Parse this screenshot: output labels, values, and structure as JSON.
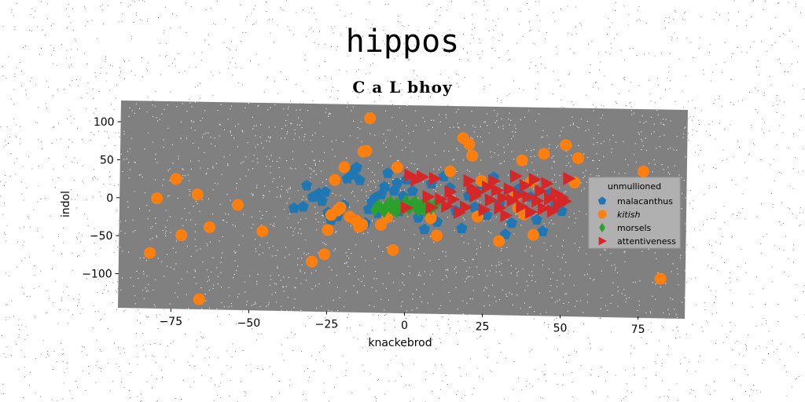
{
  "suptitle": "hippos",
  "chart_data": {
    "type": "scatter",
    "title": "C a L bhoy",
    "xlabel": "knackebrod",
    "ylabel": "indol",
    "xlim": [
      -92,
      90
    ],
    "ylim": [
      -145,
      128
    ],
    "xticks": [
      -75,
      -50,
      -25,
      0,
      25,
      50,
      75
    ],
    "yticks": [
      100,
      50,
      0,
      -50,
      -100
    ],
    "xtick_labels": [
      "−75",
      "−50",
      "−25",
      "0",
      "25",
      "50",
      "75"
    ],
    "ytick_labels": [
      "100",
      "50",
      "0",
      "−50",
      "−100"
    ],
    "grid": false,
    "legend": {
      "title": "unmullioned",
      "position": "right"
    },
    "colors": {
      "plot_bg": "#808080",
      "malacanthus": "#1f77b4",
      "kitish": "#ff7f0e",
      "morsels": "#2ca02c",
      "attentiveness": "#d62728"
    },
    "series": [
      {
        "name": "malacanthus",
        "marker": "pentagon",
        "color": "#1f77b4",
        "points": [
          [
            -36,
            -10
          ],
          [
            -33,
            -8
          ],
          [
            -32,
            20
          ],
          [
            -30,
            5
          ],
          [
            -28,
            10
          ],
          [
            -27,
            0
          ],
          [
            -25,
            -15
          ],
          [
            -26,
            12
          ],
          [
            -24,
            -25
          ],
          [
            -22,
            -20
          ],
          [
            -20,
            -5
          ],
          [
            -19,
            30
          ],
          [
            -18,
            40
          ],
          [
            -17,
            35
          ],
          [
            -16,
            45
          ],
          [
            -15,
            28
          ],
          [
            -14,
            -30
          ],
          [
            -13,
            -28
          ],
          [
            -12,
            -10
          ],
          [
            -11,
            0
          ],
          [
            -10,
            5
          ],
          [
            -9,
            -15
          ],
          [
            -8,
            10
          ],
          [
            -7,
            20
          ],
          [
            -6,
            38
          ],
          [
            -5,
            -5
          ],
          [
            -4,
            15
          ],
          [
            -3,
            25
          ],
          [
            -2,
            -12
          ],
          [
            -1,
            8
          ],
          [
            0,
            30
          ],
          [
            2,
            15
          ],
          [
            4,
            -20
          ],
          [
            6,
            -35
          ],
          [
            8,
            25
          ],
          [
            10,
            -25
          ],
          [
            12,
            35
          ],
          [
            14,
            20
          ],
          [
            16,
            -10
          ],
          [
            18,
            -33
          ],
          [
            20,
            10
          ],
          [
            22,
            -5
          ],
          [
            24,
            25
          ],
          [
            26,
            -15
          ],
          [
            28,
            35
          ],
          [
            30,
            0
          ],
          [
            32,
            -40
          ],
          [
            34,
            -25
          ],
          [
            36,
            20
          ],
          [
            38,
            -10
          ],
          [
            40,
            10
          ],
          [
            42,
            -20
          ],
          [
            44,
            -35
          ],
          [
            46,
            15
          ],
          [
            48,
            0
          ],
          [
            50,
            -8
          ]
        ]
      },
      {
        "name": "kitish",
        "marker": "circle",
        "color": "#ff7f0e",
        "points": [
          [
            -82,
            -72
          ],
          [
            -80,
            0
          ],
          [
            -74,
            26
          ],
          [
            -72,
            -48
          ],
          [
            -67,
            6
          ],
          [
            -66,
            -132
          ],
          [
            -63,
            -37
          ],
          [
            -54,
            -7
          ],
          [
            -46,
            -41
          ],
          [
            -30,
            -80
          ],
          [
            -26,
            -70
          ],
          [
            -25,
            -38
          ],
          [
            -24,
            -18
          ],
          [
            -22,
            -12
          ],
          [
            -23,
            28
          ],
          [
            -21,
            -8
          ],
          [
            -20,
            45
          ],
          [
            -18,
            -20
          ],
          [
            -16,
            -25
          ],
          [
            -15,
            -33
          ],
          [
            -14,
            -30
          ],
          [
            -14,
            66
          ],
          [
            -13,
            67
          ],
          [
            -12,
            110
          ],
          [
            -8,
            -30
          ],
          [
            -6,
            -20
          ],
          [
            -4,
            -63
          ],
          [
            -3,
            46
          ],
          [
            8,
            -20
          ],
          [
            10,
            -43
          ],
          [
            14,
            42
          ],
          [
            18,
            86
          ],
          [
            20,
            78
          ],
          [
            21,
            63
          ],
          [
            24,
            30
          ],
          [
            23,
            -17
          ],
          [
            30,
            -49
          ],
          [
            35,
            10
          ],
          [
            36,
            -5
          ],
          [
            38,
            -13
          ],
          [
            37,
            58
          ],
          [
            40,
            30
          ],
          [
            41,
            -40
          ],
          [
            44,
            67
          ],
          [
            51,
            79
          ],
          [
            55,
            62
          ],
          [
            54,
            30
          ],
          [
            76,
            46
          ],
          [
            82,
            -95
          ]
        ]
      },
      {
        "name": "morsels",
        "marker": "diamond",
        "color": "#2ca02c",
        "points": [
          [
            -10,
            -10
          ],
          [
            -9,
            -5
          ],
          [
            -8,
            -8
          ],
          [
            -7,
            -12
          ],
          [
            -6,
            -3
          ],
          [
            -5,
            -7
          ],
          [
            -4,
            -10
          ],
          [
            -3,
            -2
          ],
          [
            -2,
            -6
          ],
          [
            -1,
            -9
          ],
          [
            0,
            -4
          ],
          [
            1,
            -8
          ],
          [
            2,
            -2
          ],
          [
            3,
            -6
          ],
          [
            4,
            -10
          ],
          [
            5,
            -3
          ],
          [
            6,
            -5
          ],
          [
            7,
            -1
          ],
          [
            8,
            -7
          ],
          [
            9,
            -4
          ],
          [
            10,
            0
          ],
          [
            -5,
            0
          ],
          [
            -3,
            -12
          ],
          [
            0,
            2
          ],
          [
            3,
            1
          ],
          [
            6,
            -10
          ]
        ]
      },
      {
        "name": "attentiveness",
        "marker": "triangle-right",
        "color": "#d62728",
        "points": [
          [
            0,
            -7
          ],
          [
            1,
            36
          ],
          [
            3,
            30
          ],
          [
            5,
            34
          ],
          [
            8,
            -6
          ],
          [
            7,
            8
          ],
          [
            9,
            32
          ],
          [
            11,
            5
          ],
          [
            13,
            -4
          ],
          [
            14,
            15
          ],
          [
            15,
            5
          ],
          [
            17,
            -12
          ],
          [
            19,
            -5
          ],
          [
            20,
            30
          ],
          [
            21,
            20
          ],
          [
            22,
            10
          ],
          [
            23,
            15
          ],
          [
            25,
            -8
          ],
          [
            26,
            22
          ],
          [
            27,
            5
          ],
          [
            28,
            30
          ],
          [
            29,
            18
          ],
          [
            30,
            -5
          ],
          [
            31,
            8
          ],
          [
            32,
            -15
          ],
          [
            33,
            20
          ],
          [
            34,
            5
          ],
          [
            35,
            37
          ],
          [
            36,
            12
          ],
          [
            37,
            -3
          ],
          [
            38,
            25
          ],
          [
            39,
            10
          ],
          [
            40,
            -10
          ],
          [
            41,
            33
          ],
          [
            42,
            5
          ],
          [
            43,
            18
          ],
          [
            44,
            -5
          ],
          [
            45,
            28
          ],
          [
            46,
            8
          ],
          [
            47,
            -8
          ],
          [
            48,
            15
          ],
          [
            49,
            0
          ],
          [
            50,
            10
          ],
          [
            51,
            5
          ],
          [
            52,
            35
          ]
        ]
      }
    ]
  }
}
